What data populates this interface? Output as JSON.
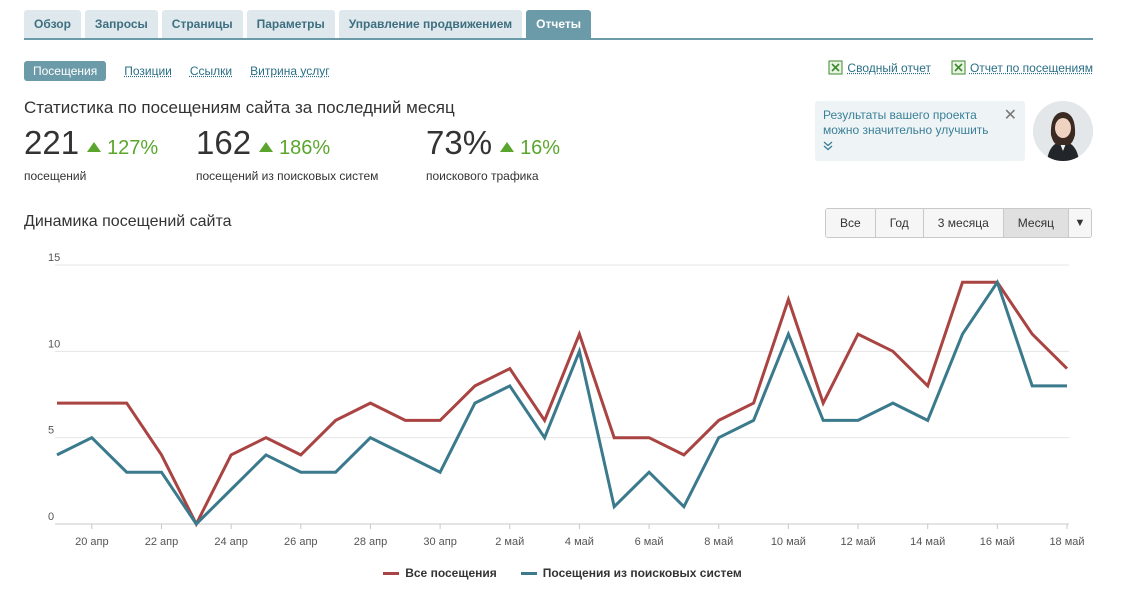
{
  "top_tabs": [
    {
      "label": "Обзор",
      "active": false
    },
    {
      "label": "Запросы",
      "active": false
    },
    {
      "label": "Страницы",
      "active": false
    },
    {
      "label": "Параметры",
      "active": false
    },
    {
      "label": "Управление продвижением",
      "active": false
    },
    {
      "label": "Отчеты",
      "active": true
    }
  ],
  "sub_tabs": [
    {
      "label": "Посещения",
      "active": true
    },
    {
      "label": "Позиции",
      "active": false
    },
    {
      "label": "Ссылки",
      "active": false
    },
    {
      "label": "Витрина услуг",
      "active": false
    }
  ],
  "reports": {
    "summary": "Сводный отчет",
    "visits": "Отчет по посещениям",
    "icon": "excel-icon"
  },
  "stats": {
    "title": "Статистика по посещениям сайта за последний месяц",
    "metrics": [
      {
        "value": "221",
        "delta": "127%",
        "caption": "посещений"
      },
      {
        "value": "162",
        "delta": "186%",
        "caption": "посещений из поисковых систем"
      },
      {
        "value": "73%",
        "delta": "16%",
        "caption": "поискового трафика"
      }
    ]
  },
  "promo": {
    "text": "Результаты вашего проекта можно значительно улучшить",
    "close": "✕",
    "more": "»"
  },
  "dynamics_title": "Динамика посещений сайта",
  "range": {
    "buttons": [
      {
        "label": "Все",
        "active": false
      },
      {
        "label": "Год",
        "active": false
      },
      {
        "label": "3 месяца",
        "active": false
      },
      {
        "label": "Месяц",
        "active": true
      }
    ],
    "dropdown": "▼"
  },
  "colors": {
    "accent": "#6b9aa8",
    "positive": "#5aa62c",
    "series_all": "#a94442",
    "series_search": "#3a7a8c"
  },
  "chart_data": {
    "type": "line",
    "x": [
      "19 апр",
      "20 апр",
      "21 апр",
      "22 апр",
      "23 апр",
      "24 апр",
      "25 апр",
      "26 апр",
      "27 апр",
      "28 апр",
      "29 апр",
      "30 апр",
      "1 май",
      "2 май",
      "3 май",
      "4 май",
      "5 май",
      "6 май",
      "7 май",
      "8 май",
      "9 май",
      "10 май",
      "11 май",
      "12 май",
      "13 май",
      "14 май",
      "15 май",
      "16 май",
      "17 май",
      "18 май"
    ],
    "tick_labels": [
      "20 апр",
      "22 апр",
      "24 апр",
      "26 апр",
      "28 апр",
      "30 апр",
      "2 май",
      "4 май",
      "6 май",
      "8 май",
      "10 май",
      "12 май",
      "14 май",
      "16 май",
      "18 май"
    ],
    "series": [
      {
        "name": "Все посещения",
        "values": [
          7,
          7,
          7,
          4,
          0,
          4,
          5,
          4,
          6,
          7,
          6,
          6,
          8,
          9,
          6,
          11,
          5,
          5,
          4,
          6,
          7,
          13,
          7,
          11,
          10,
          8,
          14,
          14,
          11,
          9
        ]
      },
      {
        "name": "Посещения из поисковых систем",
        "values": [
          4,
          5,
          3,
          3,
          0,
          2,
          4,
          3,
          3,
          5,
          4,
          3,
          7,
          8,
          5,
          10,
          1,
          3,
          1,
          5,
          6,
          11,
          6,
          6,
          7,
          6,
          11,
          14,
          8,
          8
        ]
      }
    ],
    "ylim": [
      0,
      15
    ],
    "yticks": [
      0,
      5,
      10,
      15
    ],
    "grid": true,
    "legend_position": "bottom"
  }
}
